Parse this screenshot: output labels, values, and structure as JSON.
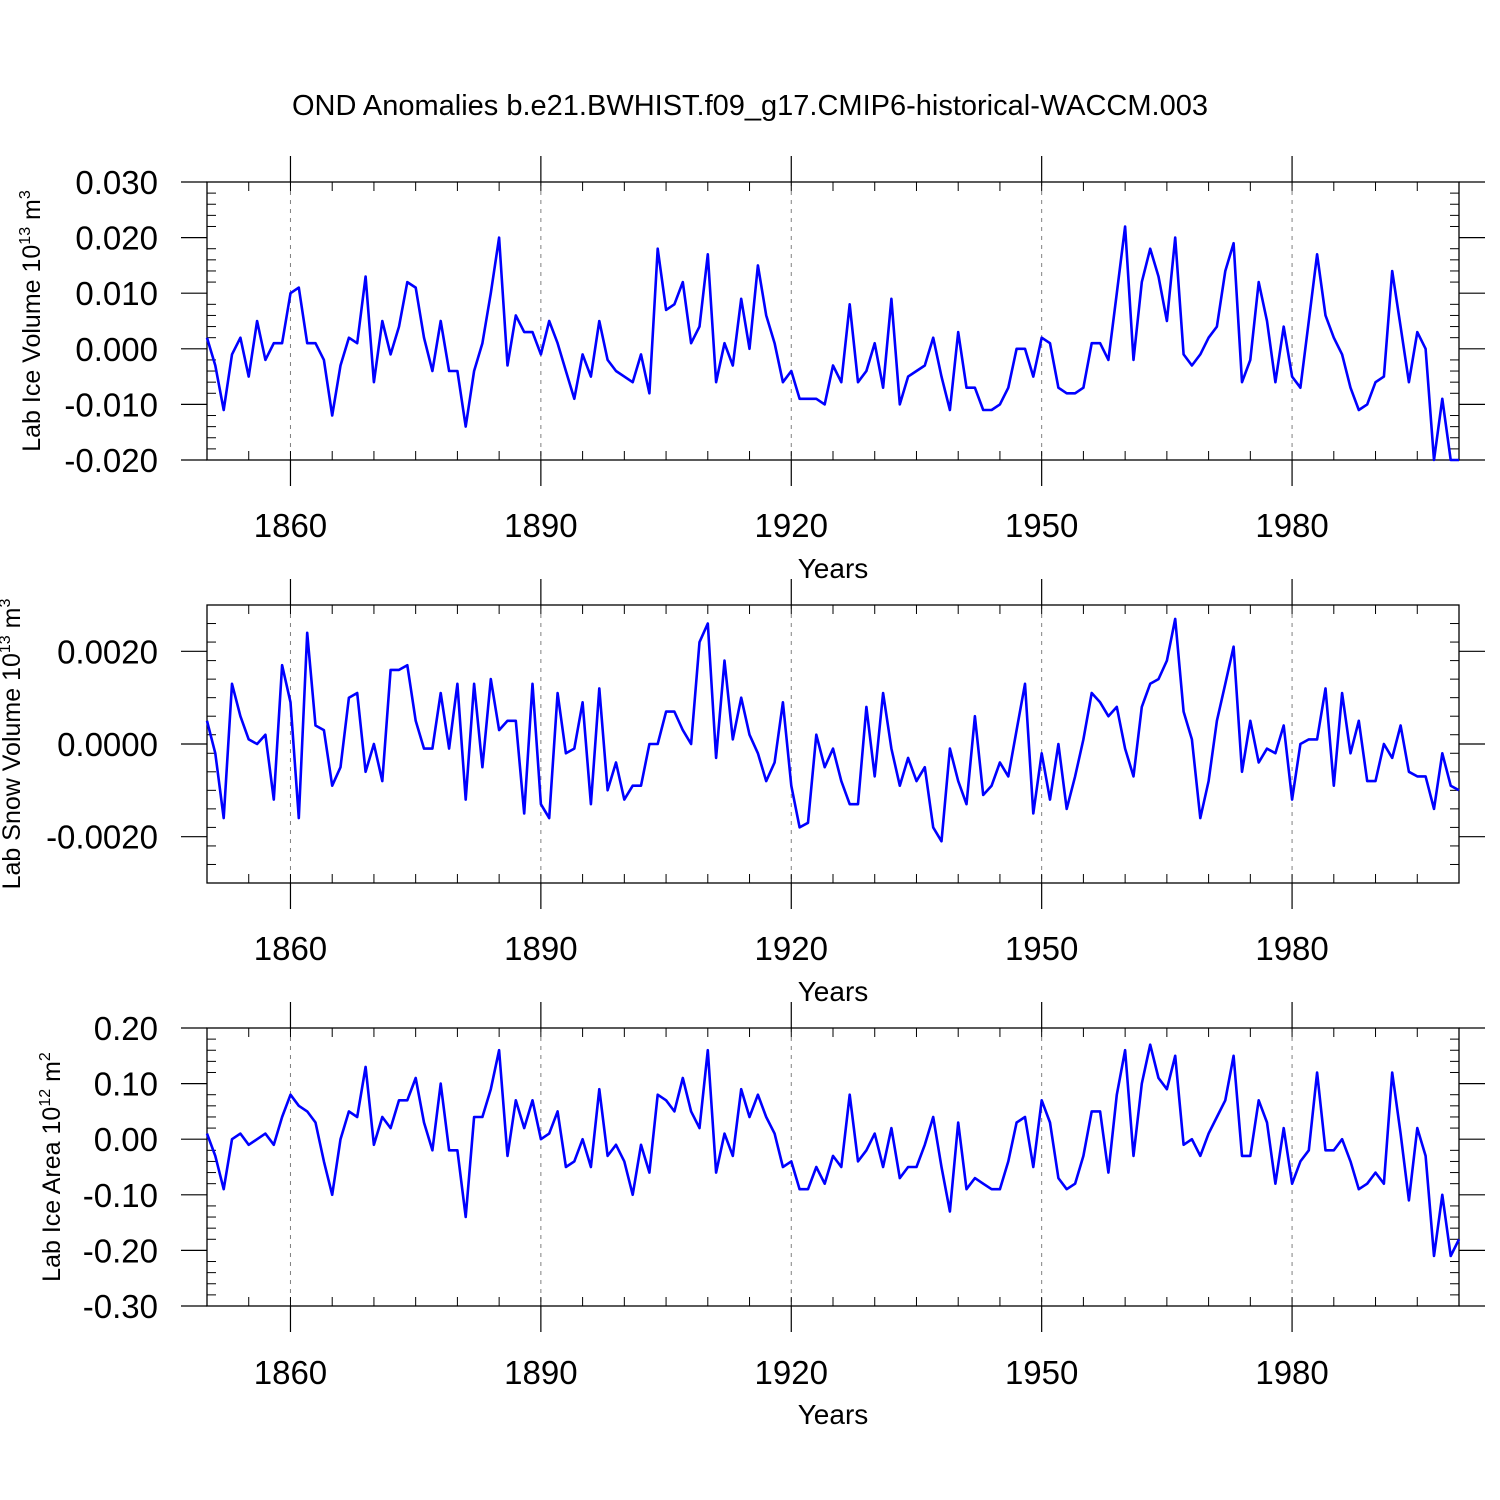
{
  "title": "OND Anomalies b.e21.BWHIST.f09_g17.CMIP6-historical-WACCM.003",
  "series_color": "#0000ff",
  "chart_data": [
    {
      "type": "line",
      "title": "",
      "xlabel": "Years",
      "ylabel": "Lab Ice Volume",
      "ylabel_exp": "13",
      "ylabel_unit_base": "m",
      "ylabel_unit_sup": "3",
      "xlim": [
        1850,
        2000
      ],
      "ylim": [
        -0.02,
        0.03
      ],
      "x_ticks": [
        1860,
        1890,
        1920,
        1950,
        1980
      ],
      "y_ticks": [
        -0.02,
        -0.01,
        0.0,
        0.01,
        0.02,
        0.03
      ],
      "y_tick_labels": [
        "-0.020",
        "-0.010",
        "0.000",
        "0.010",
        "0.020",
        "0.030"
      ],
      "vgrid_dashed": true,
      "x_start": 1850,
      "values": [
        0.002,
        -0.003,
        -0.011,
        -0.001,
        0.002,
        -0.005,
        0.005,
        -0.002,
        0.001,
        0.001,
        0.01,
        0.011,
        0.001,
        0.001,
        -0.002,
        -0.012,
        -0.003,
        0.002,
        0.001,
        0.013,
        -0.006,
        0.005,
        -0.001,
        0.004,
        0.012,
        0.011,
        0.002,
        -0.004,
        0.005,
        -0.004,
        -0.004,
        -0.014,
        -0.004,
        0.001,
        0.01,
        0.02,
        -0.003,
        0.006,
        0.003,
        0.003,
        -0.001,
        0.005,
        0.001,
        -0.004,
        -0.009,
        -0.001,
        -0.005,
        0.005,
        -0.002,
        -0.004,
        -0.005,
        -0.006,
        -0.001,
        -0.008,
        0.018,
        0.007,
        0.008,
        0.012,
        0.001,
        0.004,
        0.017,
        -0.006,
        0.001,
        -0.003,
        0.009,
        0.0,
        0.015,
        0.006,
        0.001,
        -0.006,
        -0.004,
        -0.009,
        -0.009,
        -0.009,
        -0.01,
        -0.003,
        -0.006,
        0.008,
        -0.006,
        -0.004,
        0.001,
        -0.007,
        0.009,
        -0.01,
        -0.005,
        -0.004,
        -0.003,
        0.002,
        -0.005,
        -0.011,
        0.003,
        -0.007,
        -0.007,
        -0.011,
        -0.011,
        -0.01,
        -0.007,
        -0.0,
        0.0,
        -0.005,
        0.002,
        0.001,
        -0.007,
        -0.008,
        -0.008,
        -0.007,
        0.001,
        0.001,
        -0.002,
        0.01,
        0.022,
        -0.002,
        0.012,
        0.018,
        0.013,
        0.005,
        0.02,
        -0.001,
        -0.003,
        -0.001,
        0.002,
        0.004,
        0.014,
        0.019,
        -0.006,
        -0.002,
        0.012,
        0.005,
        -0.006,
        0.004,
        -0.005,
        -0.007,
        0.005,
        0.017,
        0.006,
        0.002,
        -0.001,
        -0.007,
        -0.011,
        -0.01,
        -0.006,
        -0.005,
        0.014,
        0.004,
        -0.006,
        0.003,
        0.0,
        -0.02,
        -0.009,
        -0.02,
        -0.02
      ]
    },
    {
      "type": "line",
      "title": "",
      "xlabel": "Years",
      "ylabel": "Lab Snow Volume",
      "ylabel_exp": "13",
      "ylabel_unit_base": "m",
      "ylabel_unit_sup": "3",
      "xlim": [
        1850,
        2000
      ],
      "ylim": [
        -0.003,
        0.003
      ],
      "x_ticks": [
        1860,
        1890,
        1920,
        1950,
        1980
      ],
      "y_ticks": [
        -0.002,
        0.0,
        0.002
      ],
      "y_tick_labels": [
        "-0.0020",
        "0.0000",
        "0.0020"
      ],
      "vgrid_dashed": true,
      "x_start": 1850,
      "values": [
        0.0005,
        -0.0002,
        -0.0016,
        0.0013,
        0.0006,
        0.0001,
        0.0,
        0.0002,
        -0.0012,
        0.0017,
        0.0009,
        -0.0016,
        0.0024,
        0.0004,
        0.0003,
        -0.0009,
        -0.0005,
        0.001,
        0.0011,
        -0.0006,
        0.0,
        -0.0008,
        0.0016,
        0.0016,
        0.0017,
        0.0005,
        -0.0001,
        -0.0001,
        0.0011,
        -0.0001,
        0.0013,
        -0.0012,
        0.0013,
        -0.0005,
        0.0014,
        0.0003,
        0.0005,
        0.0005,
        -0.0015,
        0.0013,
        -0.0013,
        -0.0016,
        0.0011,
        -0.0002,
        -0.0001,
        0.0009,
        -0.0013,
        0.0012,
        -0.001,
        -0.0004,
        -0.0012,
        -0.0009,
        -0.0009,
        0.0,
        0.0,
        0.0007,
        0.0007,
        0.0003,
        0.0,
        0.0022,
        0.0026,
        -0.0003,
        0.0018,
        0.0001,
        0.001,
        0.0002,
        -0.0002,
        -0.0008,
        -0.0004,
        0.0009,
        -0.0009,
        -0.0018,
        -0.0017,
        0.0002,
        -0.0005,
        -0.0001,
        -0.0008,
        -0.0013,
        -0.0013,
        0.0008,
        -0.0007,
        0.0011,
        -0.0001,
        -0.0009,
        -0.0003,
        -0.0008,
        -0.0005,
        -0.0018,
        -0.0021,
        -0.0001,
        -0.0008,
        -0.0013,
        0.0006,
        -0.0011,
        -0.0009,
        -0.0004,
        -0.0007,
        0.0003,
        0.0013,
        -0.0015,
        -0.0002,
        -0.0012,
        0.0,
        -0.0014,
        -0.0007,
        0.0001,
        0.0011,
        0.0009,
        0.0006,
        0.0008,
        -0.0001,
        -0.0007,
        0.0008,
        0.0013,
        0.0014,
        0.0018,
        0.0027,
        0.0007,
        0.0001,
        -0.0016,
        -0.0008,
        0.0005,
        0.0013,
        0.0021,
        -0.0006,
        0.0005,
        -0.0004,
        -0.0001,
        -0.0002,
        0.0004,
        -0.0012,
        0.0,
        0.0001,
        0.0001,
        0.0012,
        -0.0009,
        0.0011,
        -0.0002,
        0.0005,
        -0.0008,
        -0.0008,
        0.0,
        -0.0003,
        0.0004,
        -0.0006,
        -0.0007,
        -0.0007,
        -0.0014,
        -0.0002,
        -0.0009,
        -0.001
      ]
    },
    {
      "type": "line",
      "title": "",
      "xlabel": "Years",
      "ylabel": "Lab Ice Area",
      "ylabel_exp": "12",
      "ylabel_unit_base": "m",
      "ylabel_unit_sup": "2",
      "xlim": [
        1850,
        2000
      ],
      "ylim": [
        -0.3,
        0.2
      ],
      "x_ticks": [
        1860,
        1890,
        1920,
        1950,
        1980
      ],
      "y_ticks": [
        -0.3,
        -0.2,
        -0.1,
        0.0,
        0.1,
        0.2
      ],
      "y_tick_labels": [
        "-0.30",
        "-0.20",
        "-0.10",
        "0.00",
        "0.10",
        "0.20"
      ],
      "vgrid_dashed": true,
      "x_start": 1850,
      "values": [
        0.01,
        -0.03,
        -0.09,
        0.0,
        0.01,
        -0.01,
        -0.0,
        0.01,
        -0.01,
        0.04,
        0.08,
        0.06,
        0.05,
        0.03,
        -0.04,
        -0.1,
        0.0,
        0.05,
        0.04,
        0.13,
        -0.01,
        0.04,
        0.02,
        0.07,
        0.07,
        0.11,
        0.03,
        -0.02,
        0.1,
        -0.02,
        -0.02,
        -0.14,
        0.04,
        0.04,
        0.09,
        0.16,
        -0.03,
        0.07,
        0.02,
        0.07,
        -0.0,
        0.01,
        0.05,
        -0.05,
        -0.04,
        0.0,
        -0.05,
        0.09,
        -0.03,
        -0.01,
        -0.04,
        -0.1,
        -0.01,
        -0.06,
        0.08,
        0.07,
        0.05,
        0.11,
        0.05,
        0.02,
        0.16,
        -0.06,
        0.01,
        -0.03,
        0.09,
        0.04,
        0.08,
        0.04,
        0.01,
        -0.05,
        -0.04,
        -0.09,
        -0.09,
        -0.05,
        -0.08,
        -0.03,
        -0.05,
        0.08,
        -0.04,
        -0.02,
        0.01,
        -0.05,
        0.02,
        -0.07,
        -0.05,
        -0.05,
        -0.01,
        0.04,
        -0.05,
        -0.13,
        0.03,
        -0.09,
        -0.07,
        -0.08,
        -0.09,
        -0.09,
        -0.04,
        0.03,
        0.04,
        -0.05,
        0.07,
        0.03,
        -0.07,
        -0.09,
        -0.08,
        -0.03,
        0.05,
        0.05,
        -0.06,
        0.08,
        0.16,
        -0.03,
        0.1,
        0.17,
        0.11,
        0.09,
        0.15,
        -0.01,
        0.0,
        -0.03,
        0.01,
        0.04,
        0.07,
        0.15,
        -0.03,
        -0.03,
        0.07,
        0.03,
        -0.08,
        0.02,
        -0.08,
        -0.04,
        -0.02,
        0.12,
        -0.02,
        -0.02,
        0.0,
        -0.04,
        -0.09,
        -0.08,
        -0.06,
        -0.08,
        0.12,
        0.01,
        -0.11,
        0.02,
        -0.03,
        -0.21,
        -0.1,
        -0.21,
        -0.18
      ]
    }
  ]
}
